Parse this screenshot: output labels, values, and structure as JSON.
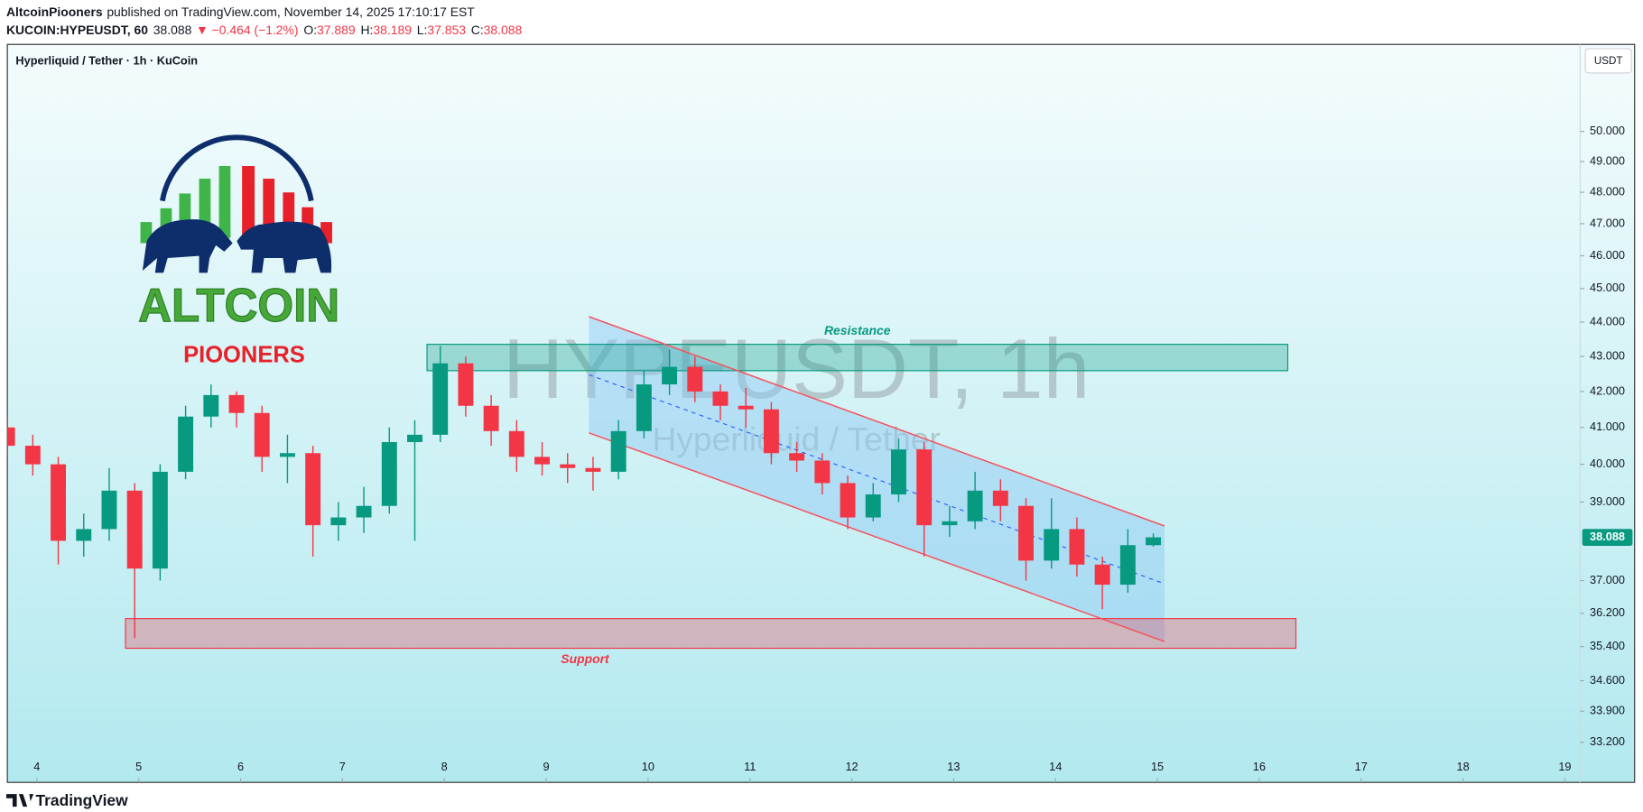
{
  "header": {
    "publisher": "AltcoinPiooners",
    "published": "published on TradingView.com, November 14, 2025 17:10:17 EST",
    "symbol": "KUCOIN:HYPEUSDT, 60",
    "price": "38.088",
    "change": "▼ −0.464 (−1.2%)",
    "o_label": "O:",
    "o": "37.889",
    "h_label": "H:",
    "h": "38.189",
    "l_label": "L:",
    "l": "37.853",
    "c_label": "C:",
    "c": "38.088"
  },
  "legend": "Hyperliquid / Tether · 1h · KuCoin",
  "currency": "USDT",
  "watermark": {
    "symbol": "HYPEUSDT, 1h",
    "name": "Hyperliquid / Tether"
  },
  "logo": {
    "line1": "ALTCOIN",
    "line2": "PIOONERS"
  },
  "footer": "TradingView",
  "chart_data": {
    "type": "candlestick",
    "log_scale": true,
    "up_color": "#089981",
    "down_color": "#f23645",
    "x": [
      3.71,
      3.96,
      4.21,
      4.46,
      4.71,
      4.96,
      5.21,
      5.46,
      5.71,
      5.96,
      6.21,
      6.46,
      6.71,
      6.96,
      7.21,
      7.46,
      7.71,
      7.96,
      8.21,
      8.46,
      8.71,
      8.96,
      9.21,
      9.46,
      9.71,
      9.96,
      10.21,
      10.46,
      10.71,
      10.96,
      11.21,
      11.46,
      11.71,
      11.96,
      12.21,
      12.46,
      12.71,
      12.96,
      13.21,
      13.46,
      13.71,
      13.96,
      14.21,
      14.46,
      14.71,
      14.96
    ],
    "open": [
      41.0,
      40.5,
      40.0,
      38.0,
      38.3,
      39.3,
      37.3,
      39.8,
      41.3,
      41.9,
      41.4,
      40.2,
      40.3,
      38.4,
      38.6,
      38.9,
      40.6,
      40.8,
      42.8,
      41.6,
      40.9,
      40.2,
      40.0,
      39.9,
      39.8,
      40.9,
      42.2,
      42.7,
      42.0,
      41.6,
      41.5,
      40.3,
      40.1,
      39.5,
      38.6,
      39.2,
      40.4,
      38.4,
      38.5,
      39.3,
      38.9,
      37.5,
      38.3,
      37.4,
      36.9,
      37.889
    ],
    "high": [
      41.3,
      40.8,
      40.2,
      38.7,
      39.9,
      39.5,
      40.0,
      41.6,
      42.2,
      42.0,
      41.6,
      40.8,
      40.5,
      39.0,
      39.4,
      41.0,
      41.2,
      43.3,
      43.0,
      41.9,
      41.2,
      40.6,
      40.3,
      40.2,
      41.2,
      42.6,
      43.2,
      43.0,
      42.2,
      42.1,
      41.7,
      40.6,
      40.3,
      39.7,
      39.5,
      40.7,
      40.6,
      38.9,
      39.8,
      39.6,
      39.1,
      39.1,
      38.6,
      37.6,
      38.3,
      38.189
    ],
    "low": [
      40.2,
      39.7,
      37.4,
      37.6,
      38.0,
      35.6,
      37.0,
      39.6,
      41.0,
      41.0,
      39.8,
      39.5,
      37.6,
      38.0,
      38.2,
      38.7,
      38.0,
      40.6,
      41.3,
      40.5,
      39.8,
      39.7,
      39.5,
      39.3,
      39.6,
      40.7,
      41.9,
      41.7,
      41.2,
      41.0,
      40.0,
      39.8,
      39.2,
      38.3,
      38.5,
      39.0,
      37.6,
      38.1,
      38.3,
      38.5,
      37.0,
      37.3,
      37.1,
      36.3,
      36.7,
      37.853
    ],
    "close": [
      40.5,
      40.0,
      38.0,
      38.3,
      39.3,
      37.3,
      39.8,
      41.3,
      41.9,
      41.4,
      40.2,
      40.3,
      38.4,
      38.6,
      38.9,
      40.6,
      40.8,
      42.8,
      41.6,
      40.9,
      40.2,
      40.0,
      39.9,
      39.8,
      40.9,
      42.2,
      42.7,
      42.0,
      41.6,
      41.5,
      40.3,
      40.1,
      39.5,
      38.6,
      39.2,
      40.4,
      38.4,
      38.5,
      39.3,
      38.9,
      37.5,
      38.3,
      37.4,
      36.9,
      37.889,
      38.088
    ],
    "xlim": [
      3.71,
      19.15
    ],
    "ylim": [
      32.32,
      53.0
    ],
    "xticks": [
      4,
      5,
      6,
      7,
      8,
      9,
      10,
      11,
      12,
      13,
      14,
      15,
      16,
      17,
      18,
      19
    ],
    "yticks": [
      {
        "value": 50,
        "label": "50.000"
      },
      {
        "value": 49,
        "label": "49.000"
      },
      {
        "value": 48,
        "label": "48.000"
      },
      {
        "value": 47,
        "label": "47.000"
      },
      {
        "value": 46,
        "label": "46.000"
      },
      {
        "value": 45,
        "label": "45.000"
      },
      {
        "value": 44,
        "label": "44.000"
      },
      {
        "value": 43,
        "label": "43.000"
      },
      {
        "value": 42,
        "label": "42.000"
      },
      {
        "value": 41,
        "label": "41.000"
      },
      {
        "value": 40,
        "label": "40.000"
      },
      {
        "value": 39,
        "label": "39.000"
      },
      {
        "value": 37,
        "label": "37.000"
      },
      {
        "value": 36.2,
        "label": "36.200"
      },
      {
        "value": 35.4,
        "label": "35.400"
      },
      {
        "value": 34.6,
        "label": "34.600"
      },
      {
        "value": 33.9,
        "label": "33.900"
      },
      {
        "value": 33.2,
        "label": "33.200"
      }
    ],
    "zones": [
      {
        "label": "Resistance",
        "x": [
          7.83,
          16.28
        ],
        "y": [
          42.59,
          43.35
        ],
        "color": "#089981"
      },
      {
        "label": "Support",
        "x": [
          4.87,
          16.36
        ],
        "y": [
          35.36,
          36.07
        ],
        "color": "#f23645"
      }
    ],
    "channel": {
      "x": [
        9.42,
        15.07
      ],
      "upper": [
        44.16,
        38.38
      ],
      "lower": [
        40.85,
        35.52
      ],
      "color": "#f7525f"
    }
  }
}
